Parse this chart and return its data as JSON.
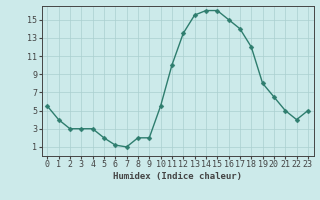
{
  "x": [
    0,
    1,
    2,
    3,
    4,
    5,
    6,
    7,
    8,
    9,
    10,
    11,
    12,
    13,
    14,
    15,
    16,
    17,
    18,
    19,
    20,
    21,
    22,
    23
  ],
  "y": [
    5.5,
    4.0,
    3.0,
    3.0,
    3.0,
    2.0,
    1.2,
    1.0,
    2.0,
    2.0,
    5.5,
    10.0,
    13.5,
    15.5,
    16.0,
    16.0,
    15.0,
    14.0,
    12.0,
    8.0,
    6.5,
    5.0,
    4.0,
    5.0
  ],
  "line_color": "#2e7d6e",
  "marker": "D",
  "marker_size": 2.5,
  "bg_color": "#cceaea",
  "grid_color": "#aacfcf",
  "axis_color": "#444444",
  "xlabel": "Humidex (Indice chaleur)",
  "xlabel_fontsize": 6.5,
  "xlim": [
    -0.5,
    23.5
  ],
  "ylim": [
    0,
    16.5
  ],
  "yticks": [
    1,
    3,
    5,
    7,
    9,
    11,
    13,
    15
  ],
  "xticks": [
    0,
    1,
    2,
    3,
    4,
    5,
    6,
    7,
    8,
    9,
    10,
    11,
    12,
    13,
    14,
    15,
    16,
    17,
    18,
    19,
    20,
    21,
    22,
    23
  ],
  "tick_fontsize": 6.0
}
